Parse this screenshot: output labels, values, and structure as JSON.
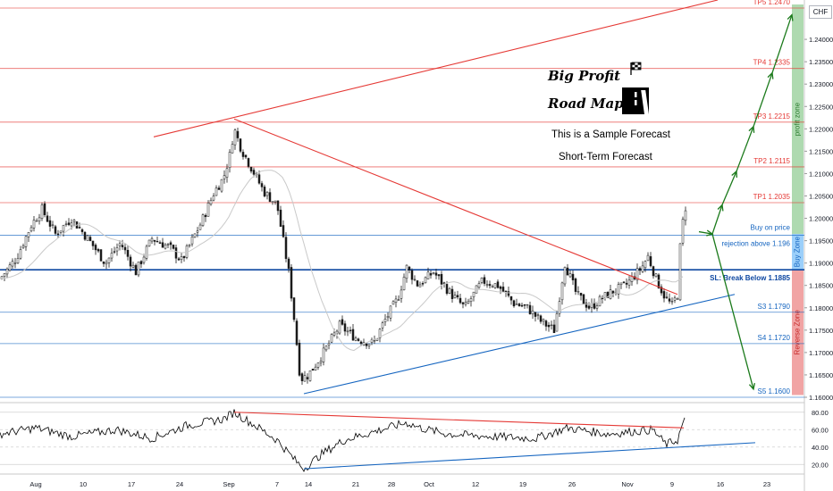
{
  "header": {
    "currency": "CHF"
  },
  "annotations": {
    "title_line1": "Big Profit",
    "title_line2": "Road Map",
    "sample_note": "This is a Sample Forecast",
    "term_note": "Short-Term Forecast",
    "buy_on_price": "Buy on price",
    "rejection": "rejection above 1.196",
    "stop_loss": "SL: Break Below 1.1885"
  },
  "zones": [
    {
      "label": "profit zone",
      "from": 1.1965,
      "to": 1.2478,
      "color": "#a5d6a7"
    },
    {
      "label": "Buy Zone",
      "from": 1.1885,
      "to": 1.1965,
      "color": "#90caf9"
    },
    {
      "label": "Reverse Zone",
      "from": 1.1605,
      "to": 1.1885,
      "color": "#ef9a9a"
    }
  ],
  "colors": {
    "candle_up": "#1b1b1b",
    "candle_down": "#1b1b1b",
    "resistance": "#e53935",
    "support": "#1565c0",
    "forecast_arrows": "#1b7a1b",
    "ma_line": "#c9c9c9",
    "rsi_line": "#000000"
  },
  "chart_data": {
    "type": "candlestick",
    "y_axis": {
      "ylim": [
        1.159,
        1.2488
      ],
      "ticks": [
        "1.24000",
        "1.23500",
        "1.23000",
        "1.22500",
        "1.22000",
        "1.21500",
        "1.21000",
        "1.20500",
        "1.20000",
        "1.19500",
        "1.19000",
        "1.18500",
        "1.18000",
        "1.17500",
        "1.17000",
        "1.16500",
        "1.16000"
      ]
    },
    "x_axis": {
      "labels": [
        "Aug",
        "10",
        "17",
        "24",
        "Sep",
        "7",
        "14",
        "21",
        "28",
        "Oct",
        "12",
        "19",
        "26",
        "Nov",
        "9",
        "16",
        "23"
      ]
    },
    "levels": [
      {
        "label": "TP5 1.2470",
        "value": 1.247,
        "color": "#e53935"
      },
      {
        "label": "TP4 1.2335",
        "value": 1.2335,
        "color": "#e53935"
      },
      {
        "label": "TP3 1.2215",
        "value": 1.2215,
        "color": "#e53935"
      },
      {
        "label": "TP2 1.2115",
        "value": 1.2115,
        "color": "#e53935"
      },
      {
        "label": "TP1 1.2035",
        "value": 1.2035,
        "color": "#e53935"
      },
      {
        "label": "",
        "value": 1.1962,
        "color": "#1565c0"
      },
      {
        "label": "",
        "value": 1.1885,
        "color": "#0d47a1"
      },
      {
        "label": "S3 1.1790",
        "value": 1.179,
        "color": "#1565c0"
      },
      {
        "label": "S4 1.1720",
        "value": 1.172,
        "color": "#1565c0"
      },
      {
        "label": "S5 1.1600",
        "value": 1.16,
        "color": "#1565c0"
      }
    ],
    "price_anchors": [
      [
        0,
        1.1865
      ],
      [
        18,
        1.191
      ],
      [
        35,
        1.1985
      ],
      [
        47,
        1.202
      ],
      [
        62,
        1.1965
      ],
      [
        80,
        1.2
      ],
      [
        100,
        1.195
      ],
      [
        118,
        1.19
      ],
      [
        135,
        1.1945
      ],
      [
        152,
        1.188
      ],
      [
        170,
        1.1955
      ],
      [
        190,
        1.1935
      ],
      [
        203,
        1.1905
      ],
      [
        225,
        1.199
      ],
      [
        240,
        1.206
      ],
      [
        250,
        1.209
      ],
      [
        257,
        1.214
      ],
      [
        262,
        1.22
      ],
      [
        270,
        1.2155
      ],
      [
        282,
        1.211
      ],
      [
        295,
        1.206
      ],
      [
        310,
        1.203
      ],
      [
        316,
        1.196
      ],
      [
        323,
        1.188
      ],
      [
        330,
        1.176
      ],
      [
        336,
        1.164
      ],
      [
        345,
        1.165
      ],
      [
        362,
        1.17
      ],
      [
        380,
        1.176
      ],
      [
        400,
        1.173
      ],
      [
        418,
        1.172
      ],
      [
        430,
        1.177
      ],
      [
        445,
        1.182
      ],
      [
        455,
        1.189
      ],
      [
        468,
        1.185
      ],
      [
        485,
        1.188
      ],
      [
        505,
        1.183
      ],
      [
        520,
        1.18
      ],
      [
        540,
        1.186
      ],
      [
        557,
        1.185
      ],
      [
        575,
        1.181
      ],
      [
        590,
        1.18
      ],
      [
        605,
        1.177
      ],
      [
        620,
        1.175
      ],
      [
        632,
        1.19
      ],
      [
        645,
        1.183
      ],
      [
        660,
        1.18
      ],
      [
        680,
        1.183
      ],
      [
        700,
        1.185
      ],
      [
        718,
        1.189
      ],
      [
        725,
        1.1915
      ],
      [
        735,
        1.186
      ],
      [
        745,
        1.182
      ],
      [
        752,
        1.1805
      ],
      [
        758,
        1.183
      ],
      [
        762,
        1.197
      ],
      [
        767,
        1.2025
      ]
    ],
    "trendlines": [
      {
        "name": "upper channel",
        "from": [
          172,
          1.2182
        ],
        "to": [
          803,
          1.2488
        ],
        "color": "#e53935"
      },
      {
        "name": "descending resistance",
        "from": [
          262,
          1.2222
        ],
        "to": [
          758,
          1.183
        ],
        "color": "#e53935"
      },
      {
        "name": "ascending support",
        "from": [
          340,
          1.1608
        ],
        "to": [
          822,
          1.183
        ],
        "color": "#1565c0"
      }
    ],
    "forecast_path": [
      [
        782,
        1.197
      ],
      [
        797,
        1.1965
      ],
      [
        808,
        1.203
      ],
      [
        824,
        1.2105
      ],
      [
        843,
        1.2205
      ],
      [
        864,
        1.2325
      ],
      [
        886,
        1.2455
      ]
    ],
    "reverse_path": [
      [
        797,
        1.1965
      ],
      [
        843,
        1.1618
      ]
    ],
    "rsi": {
      "ticks": [
        80,
        60,
        40,
        20
      ],
      "ylim": [
        10,
        90
      ],
      "anchors": [
        [
          0,
          55
        ],
        [
          40,
          62
        ],
        [
          80,
          52
        ],
        [
          130,
          60
        ],
        [
          170,
          50
        ],
        [
          210,
          65
        ],
        [
          250,
          72
        ],
        [
          262,
          80
        ],
        [
          285,
          65
        ],
        [
          310,
          48
        ],
        [
          330,
          25
        ],
        [
          340,
          15
        ],
        [
          360,
          32
        ],
        [
          385,
          48
        ],
        [
          420,
          58
        ],
        [
          455,
          68
        ],
        [
          470,
          62
        ],
        [
          500,
          55
        ],
        [
          550,
          52
        ],
        [
          600,
          50
        ],
        [
          635,
          62
        ],
        [
          680,
          55
        ],
        [
          730,
          60
        ],
        [
          745,
          43
        ],
        [
          758,
          48
        ],
        [
          765,
          70
        ]
      ],
      "lines": [
        {
          "from": [
            262,
            80
          ],
          "to": [
            765,
            62
          ],
          "color": "#e53935"
        },
        {
          "from": [
            340,
            15
          ],
          "to": [
            845,
            45
          ],
          "color": "#1565c0"
        }
      ]
    }
  }
}
